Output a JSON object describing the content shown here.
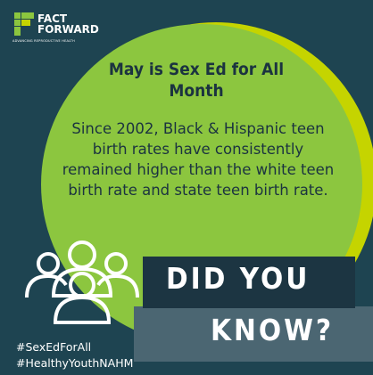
{
  "logo": {
    "line1": "FACT",
    "line2": "FORWARD",
    "tagline": "ADVANCING REPRODUCTIVE HEALTH"
  },
  "title": "May is Sex Ed for All Month",
  "body": "Since 2002, Black & Hispanic teen birth rates have consistently remained higher than the white teen birth rate and state teen birth rate.",
  "banner": {
    "line1": "DID YOU",
    "line2": "KNOW?"
  },
  "hashtags": [
    "#SexEdForAll",
    "#HealthyYouthNAHM"
  ]
}
